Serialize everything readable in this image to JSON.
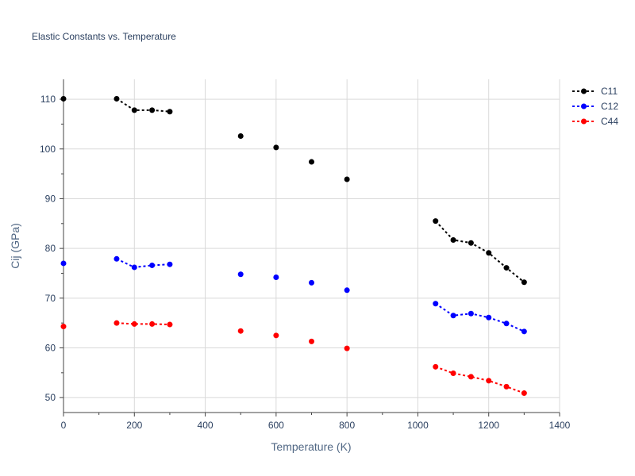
{
  "chart_data": {
    "type": "line",
    "title": "Elastic Constants vs. Temperature",
    "xlabel": "Temperature (K)",
    "ylabel": "Cij (GPa)",
    "xlim": [
      0,
      1400
    ],
    "ylim": [
      47,
      114
    ],
    "xticks": [
      0,
      200,
      400,
      600,
      800,
      1000,
      1200,
      1400
    ],
    "yticks": [
      50,
      60,
      70,
      80,
      90,
      100,
      110
    ],
    "grid": true,
    "legend_position": "top-right",
    "series": [
      {
        "name": "C11",
        "color": "#000000",
        "segments": [
          [
            [
              0,
              110.1
            ]
          ],
          [
            [
              150,
              110.1
            ],
            [
              200,
              107.8
            ],
            [
              250,
              107.8
            ],
            [
              300,
              107.5
            ]
          ],
          [
            [
              500,
              102.6
            ]
          ],
          [
            [
              600,
              100.3
            ]
          ],
          [
            [
              700,
              97.4
            ]
          ],
          [
            [
              800,
              93.9
            ]
          ],
          [
            [
              1050,
              85.5
            ],
            [
              1100,
              81.7
            ],
            [
              1150,
              81.1
            ],
            [
              1200,
              79.1
            ],
            [
              1250,
              76.1
            ],
            [
              1300,
              73.2
            ]
          ]
        ]
      },
      {
        "name": "C12",
        "color": "#0000ff",
        "segments": [
          [
            [
              0,
              77.0
            ]
          ],
          [
            [
              150,
              77.9
            ],
            [
              200,
              76.2
            ],
            [
              250,
              76.6
            ],
            [
              300,
              76.8
            ]
          ],
          [
            [
              500,
              74.8
            ]
          ],
          [
            [
              600,
              74.2
            ]
          ],
          [
            [
              700,
              73.1
            ]
          ],
          [
            [
              800,
              71.6
            ]
          ],
          [
            [
              1050,
              68.9
            ],
            [
              1100,
              66.5
            ],
            [
              1150,
              66.9
            ],
            [
              1200,
              66.1
            ],
            [
              1250,
              64.9
            ],
            [
              1300,
              63.3
            ]
          ]
        ]
      },
      {
        "name": "C44",
        "color": "#ff0000",
        "segments": [
          [
            [
              0,
              64.3
            ]
          ],
          [
            [
              150,
              65.0
            ],
            [
              200,
              64.8
            ],
            [
              250,
              64.8
            ],
            [
              300,
              64.7
            ]
          ],
          [
            [
              500,
              63.4
            ]
          ],
          [
            [
              600,
              62.5
            ]
          ],
          [
            [
              700,
              61.3
            ]
          ],
          [
            [
              800,
              59.9
            ]
          ],
          [
            [
              1050,
              56.2
            ],
            [
              1100,
              54.9
            ],
            [
              1150,
              54.2
            ],
            [
              1200,
              53.4
            ],
            [
              1250,
              52.2
            ],
            [
              1300,
              50.9
            ]
          ]
        ]
      }
    ]
  }
}
